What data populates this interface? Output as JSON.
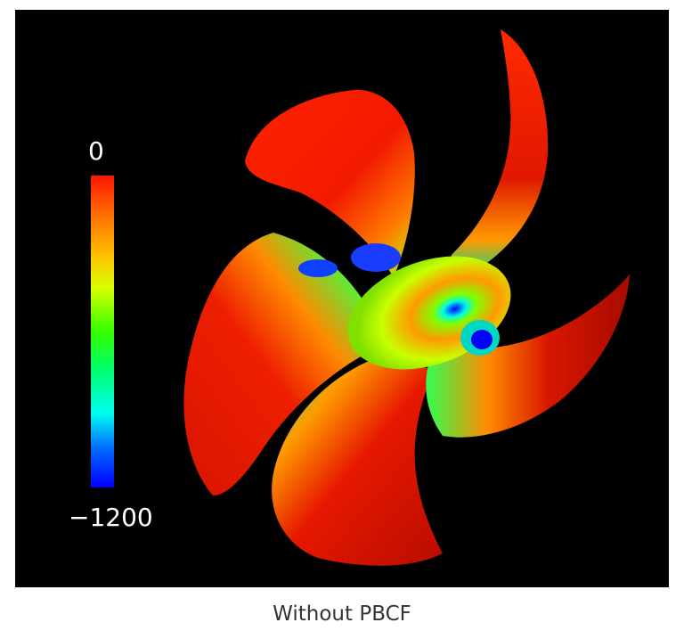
{
  "colorbar": {
    "max_label": "0",
    "min_label": "−1200",
    "colormap": [
      "#ff1500",
      "#ff6a00",
      "#ffc400",
      "#d9ff00",
      "#33ff00",
      "#00ff6a",
      "#00fff0",
      "#0066ff",
      "#0000ff"
    ]
  },
  "caption": "Without PBCF",
  "colors": {
    "background": "#000000",
    "high_pressure": "#e61a00",
    "low_pressure": "#0000ff"
  }
}
